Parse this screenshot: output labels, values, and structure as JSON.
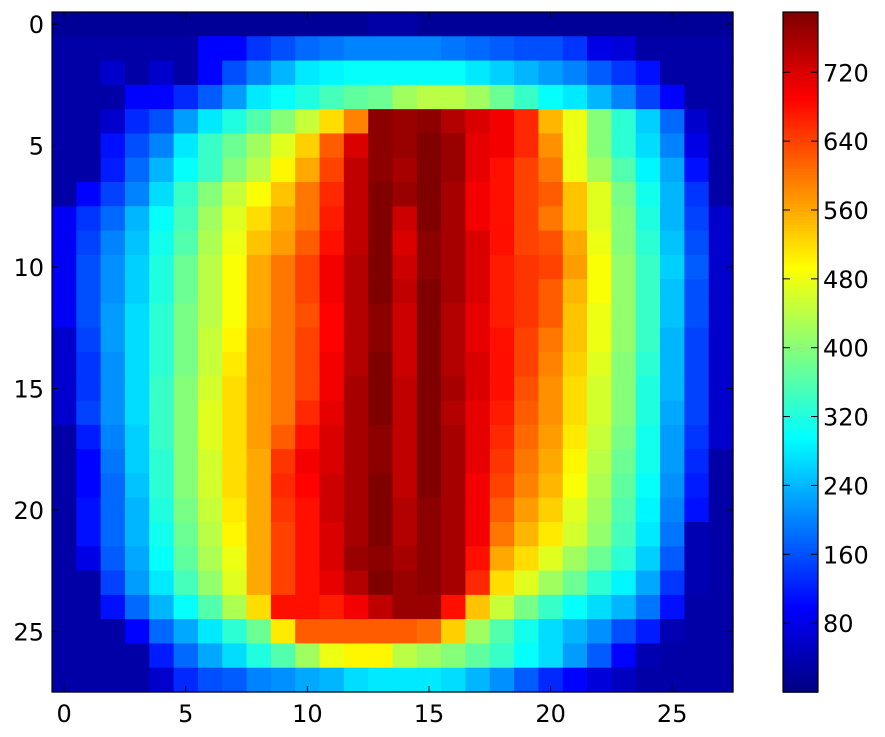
{
  "chart_data": {
    "type": "heatmap",
    "colormap": "jet",
    "x_ticks": [
      0,
      5,
      10,
      15,
      20,
      25
    ],
    "y_ticks": [
      0,
      5,
      10,
      15,
      20,
      25
    ],
    "xlim": [
      -0.5,
      27.5
    ],
    "ylim": [
      27.5,
      -0.5
    ],
    "grid": false,
    "colorbar": {
      "range": [
        0,
        790
      ],
      "ticks": [
        80,
        160,
        240,
        320,
        400,
        480,
        560,
        640,
        720
      ],
      "placement": "right"
    },
    "shape": [
      28,
      28
    ],
    "description_note": "",
    "values": [
      [
        20,
        20,
        20,
        20,
        20,
        20,
        20,
        20,
        20,
        20,
        20,
        20,
        20,
        30,
        30,
        20,
        20,
        20,
        20,
        20,
        20,
        20,
        20,
        20,
        20,
        20,
        20,
        20
      ],
      [
        30,
        30,
        30,
        30,
        30,
        30,
        100,
        100,
        140,
        160,
        180,
        190,
        200,
        200,
        200,
        200,
        190,
        180,
        170,
        160,
        160,
        140,
        80,
        70,
        30,
        30,
        30,
        30
      ],
      [
        30,
        30,
        60,
        30,
        60,
        30,
        100,
        160,
        200,
        240,
        280,
        290,
        300,
        300,
        300,
        300,
        300,
        280,
        260,
        240,
        220,
        200,
        170,
        140,
        110,
        30,
        30,
        30
      ],
      [
        30,
        30,
        30,
        100,
        100,
        130,
        170,
        220,
        280,
        300,
        320,
        350,
        370,
        380,
        420,
        440,
        440,
        420,
        380,
        340,
        300,
        280,
        240,
        200,
        150,
        100,
        30,
        30
      ],
      [
        30,
        30,
        60,
        130,
        160,
        220,
        280,
        320,
        360,
        400,
        450,
        520,
        590,
        780,
        770,
        780,
        750,
        720,
        700,
        660,
        550,
        480,
        400,
        330,
        260,
        180,
        60,
        30
      ],
      [
        30,
        30,
        110,
        160,
        200,
        280,
        340,
        380,
        420,
        470,
        530,
        620,
        720,
        780,
        770,
        790,
        770,
        710,
        700,
        660,
        580,
        480,
        400,
        330,
        270,
        200,
        80,
        30
      ],
      [
        30,
        30,
        120,
        180,
        240,
        300,
        340,
        400,
        440,
        500,
        560,
        640,
        740,
        780,
        760,
        790,
        770,
        710,
        680,
        640,
        600,
        480,
        420,
        360,
        290,
        230,
        110,
        30
      ],
      [
        30,
        100,
        150,
        200,
        270,
        340,
        400,
        450,
        490,
        540,
        600,
        660,
        740,
        790,
        770,
        790,
        760,
        700,
        680,
        640,
        620,
        540,
        470,
        390,
        310,
        240,
        140,
        30
      ],
      [
        90,
        140,
        180,
        240,
        300,
        350,
        420,
        470,
        520,
        560,
        600,
        670,
        740,
        790,
        730,
        790,
        760,
        700,
        680,
        640,
        600,
        540,
        470,
        400,
        320,
        240,
        150,
        60
      ],
      [
        90,
        150,
        200,
        250,
        310,
        360,
        430,
        480,
        540,
        570,
        620,
        680,
        740,
        790,
        720,
        780,
        760,
        720,
        680,
        640,
        630,
        560,
        480,
        400,
        330,
        250,
        160,
        60
      ],
      [
        90,
        160,
        210,
        260,
        320,
        380,
        440,
        490,
        560,
        600,
        640,
        700,
        750,
        790,
        730,
        780,
        760,
        720,
        670,
        650,
        640,
        570,
        490,
        410,
        340,
        260,
        170,
        60
      ],
      [
        90,
        160,
        210,
        260,
        320,
        380,
        440,
        490,
        560,
        600,
        640,
        700,
        750,
        790,
        740,
        790,
        760,
        720,
        670,
        650,
        620,
        550,
        490,
        410,
        340,
        250,
        160,
        60
      ],
      [
        90,
        160,
        220,
        270,
        330,
        390,
        440,
        490,
        560,
        600,
        630,
        690,
        750,
        780,
        730,
        790,
        750,
        710,
        670,
        650,
        620,
        540,
        480,
        410,
        340,
        250,
        160,
        60
      ],
      [
        60,
        150,
        220,
        270,
        330,
        390,
        450,
        500,
        570,
        600,
        640,
        690,
        750,
        780,
        730,
        790,
        750,
        710,
        680,
        640,
        600,
        540,
        480,
        410,
        340,
        240,
        150,
        60
      ],
      [
        60,
        140,
        210,
        270,
        330,
        390,
        450,
        510,
        570,
        600,
        640,
        700,
        750,
        790,
        730,
        790,
        750,
        720,
        680,
        640,
        590,
        530,
        470,
        400,
        330,
        240,
        150,
        60
      ],
      [
        60,
        140,
        210,
        270,
        340,
        400,
        460,
        520,
        570,
        600,
        640,
        700,
        760,
        790,
        740,
        790,
        760,
        720,
        680,
        630,
        580,
        520,
        460,
        400,
        320,
        240,
        150,
        60
      ],
      [
        60,
        150,
        210,
        270,
        340,
        400,
        470,
        520,
        570,
        600,
        660,
        710,
        760,
        790,
        740,
        790,
        750,
        710,
        670,
        620,
        580,
        520,
        460,
        400,
        320,
        230,
        150,
        60
      ],
      [
        30,
        120,
        200,
        260,
        340,
        400,
        470,
        520,
        570,
        620,
        680,
        720,
        760,
        780,
        740,
        790,
        760,
        710,
        660,
        610,
        570,
        510,
        450,
        390,
        310,
        220,
        140,
        60
      ],
      [
        30,
        100,
        190,
        260,
        330,
        400,
        460,
        520,
        560,
        650,
        700,
        720,
        760,
        780,
        740,
        790,
        760,
        710,
        650,
        600,
        560,
        500,
        440,
        380,
        310,
        220,
        130,
        30
      ],
      [
        30,
        100,
        180,
        250,
        330,
        400,
        460,
        520,
        560,
        660,
        690,
        730,
        760,
        790,
        740,
        790,
        760,
        700,
        640,
        590,
        550,
        490,
        430,
        370,
        300,
        210,
        120,
        30
      ],
      [
        30,
        110,
        180,
        240,
        320,
        390,
        450,
        510,
        560,
        650,
        680,
        730,
        760,
        790,
        750,
        780,
        760,
        700,
        620,
        570,
        530,
        470,
        420,
        360,
        290,
        200,
        110,
        30
      ],
      [
        30,
        110,
        180,
        240,
        310,
        380,
        440,
        500,
        560,
        640,
        680,
        720,
        760,
        790,
        750,
        780,
        760,
        700,
        600,
        550,
        510,
        460,
        410,
        350,
        280,
        190,
        40,
        30
      ],
      [
        30,
        80,
        170,
        230,
        300,
        370,
        430,
        480,
        560,
        640,
        680,
        720,
        770,
        780,
        760,
        780,
        760,
        680,
        560,
        520,
        470,
        420,
        380,
        330,
        260,
        170,
        40,
        30
      ],
      [
        30,
        30,
        150,
        220,
        280,
        350,
        410,
        470,
        560,
        640,
        680,
        710,
        750,
        790,
        770,
        780,
        760,
        660,
        520,
        470,
        420,
        380,
        330,
        290,
        230,
        140,
        40,
        30
      ],
      [
        30,
        30,
        110,
        180,
        240,
        300,
        360,
        430,
        520,
        680,
        680,
        670,
        700,
        740,
        770,
        770,
        680,
        540,
        450,
        390,
        340,
        300,
        270,
        240,
        190,
        110,
        30,
        30
      ],
      [
        30,
        30,
        30,
        100,
        180,
        230,
        280,
        330,
        380,
        510,
        620,
        620,
        620,
        620,
        620,
        610,
        530,
        420,
        360,
        310,
        270,
        240,
        210,
        160,
        120,
        40,
        30,
        30
      ],
      [
        30,
        30,
        30,
        30,
        120,
        180,
        230,
        270,
        320,
        360,
        420,
        480,
        500,
        500,
        440,
        420,
        400,
        370,
        340,
        300,
        270,
        220,
        170,
        100,
        40,
        30,
        30,
        30
      ],
      [
        30,
        30,
        30,
        30,
        60,
        130,
        160,
        170,
        200,
        210,
        230,
        240,
        270,
        280,
        280,
        280,
        270,
        240,
        210,
        170,
        130,
        100,
        70,
        50,
        30,
        30,
        30,
        30
      ]
    ]
  }
}
